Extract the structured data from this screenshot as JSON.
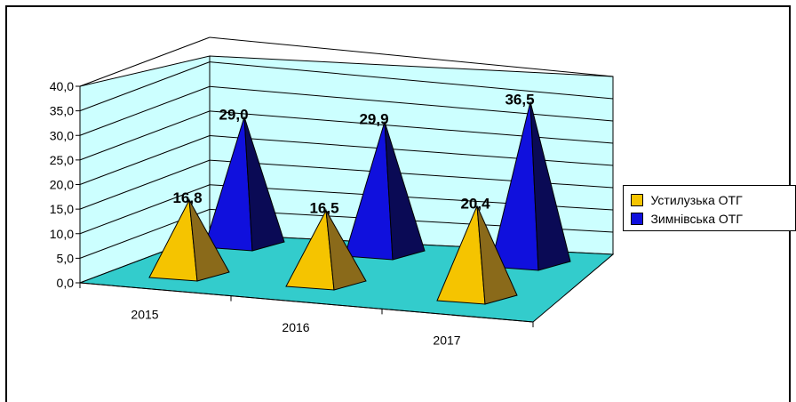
{
  "chart_data": {
    "type": "bar",
    "bar_shape": "pyramid",
    "three_d": true,
    "categories": [
      "2015",
      "2016",
      "2017"
    ],
    "series": [
      {
        "name": "Устилузька ОТГ",
        "values": [
          16.8,
          16.5,
          20.4
        ],
        "color": "#f5c400",
        "label_text": [
          "16,8",
          "16,5",
          "20,4"
        ]
      },
      {
        "name": "Зимнівська ОТГ",
        "values": [
          29.0,
          29.9,
          36.5
        ],
        "color": "#1010dd",
        "label_text": [
          "29,0",
          "29,9",
          "36,5"
        ]
      }
    ],
    "ylim": [
      0,
      40
    ],
    "yticks": [
      0,
      5,
      10,
      15,
      20,
      25,
      30,
      35,
      40
    ],
    "ytick_labels": [
      "0,0",
      "5,0",
      "10,0",
      "15,0",
      "20,0",
      "25,0",
      "30,0",
      "35,0",
      "40,0"
    ],
    "title": "",
    "xlabel": "",
    "ylabel": "",
    "grid": true,
    "legend_position": "right",
    "wall_color": "#ccffff",
    "floor_color": "#33cccc"
  }
}
